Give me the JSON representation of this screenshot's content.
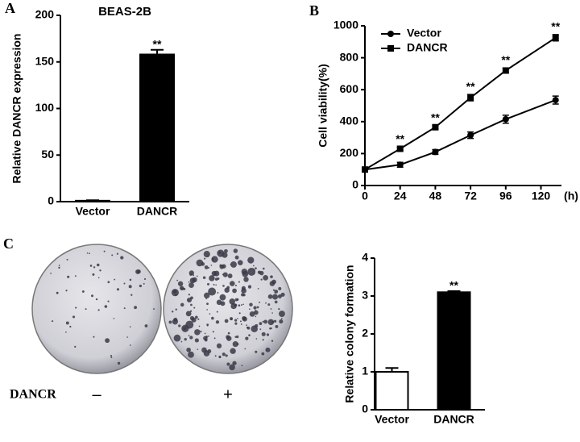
{
  "panel_labels": [
    "A",
    "B",
    "C"
  ],
  "plates": {
    "label": "DANCR",
    "conditions": [
      "–",
      "+"
    ]
  },
  "chart_data": [
    {
      "type": "bar",
      "title": "BEAS-2B",
      "y_label": "Relative DANCR expression",
      "categories": [
        "Vector",
        "DANCR"
      ],
      "values": [
        1,
        158
      ],
      "errors": [
        0.5,
        5
      ],
      "colors": [
        "#ffffff",
        "#000000"
      ],
      "significance": [
        null,
        "**"
      ],
      "ylim": [
        0,
        200
      ],
      "yticks": [
        0,
        50,
        100,
        150,
        200
      ]
    },
    {
      "type": "line",
      "y_label": "Cell viability(%)",
      "x_label": "(h)",
      "x": [
        0,
        24,
        48,
        72,
        96,
        130
      ],
      "xlim": [
        0,
        134
      ],
      "xticks": [
        0,
        24,
        48,
        72,
        96,
        120
      ],
      "ylim": [
        0,
        1000
      ],
      "yticks": [
        0,
        200,
        400,
        600,
        800,
        1000
      ],
      "legend": "upper left",
      "series": [
        {
          "name": "Vector",
          "color": "#000000",
          "marker": "circle",
          "values": [
            100,
            130,
            210,
            315,
            415,
            535
          ],
          "errors": [
            10,
            15,
            15,
            20,
            25,
            25
          ]
        },
        {
          "name": "DANCR",
          "color": "#000000",
          "marker": "square",
          "values": [
            100,
            230,
            365,
            550,
            720,
            925
          ],
          "errors": [
            10,
            10,
            10,
            20,
            15,
            20
          ]
        }
      ],
      "significance": [
        null,
        "**",
        "**",
        "**",
        "**",
        "**"
      ]
    },
    {
      "type": "bar",
      "y_label": "Relative colony formation",
      "categories": [
        "Vector",
        "DANCR"
      ],
      "values": [
        1,
        3.1
      ],
      "errors": [
        0.1,
        0.03
      ],
      "colors": [
        "#ffffff",
        "#000000"
      ],
      "significance": [
        null,
        "**"
      ],
      "ylim": [
        0,
        4
      ],
      "yticks": [
        0,
        1,
        2,
        3,
        4
      ]
    }
  ]
}
